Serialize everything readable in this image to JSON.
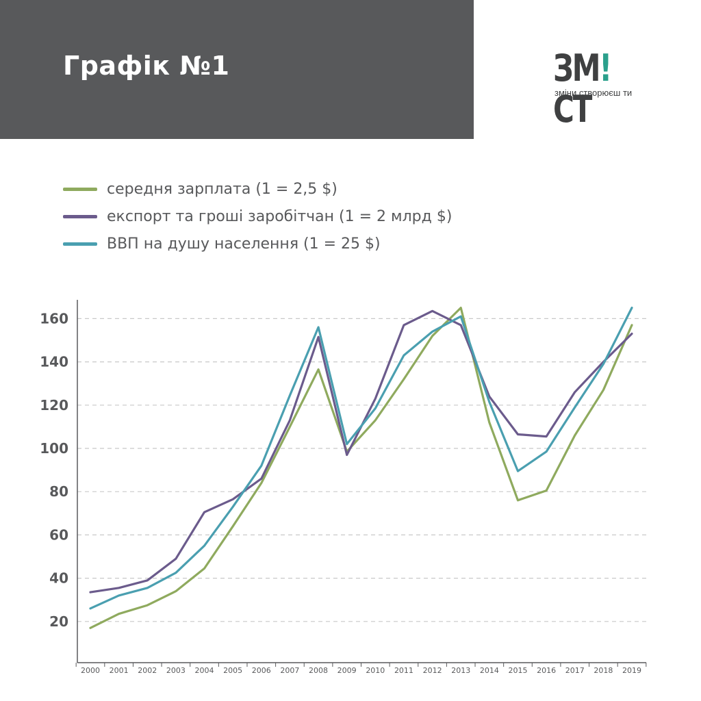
{
  "header": {
    "title": "Графік №1"
  },
  "logo": {
    "word_left": "ЗМ",
    "word_accent": "!",
    "word_right": "СТ",
    "tagline": "зміни створюєш ти"
  },
  "colors": {
    "header_bg": "#58595b",
    "salary": "#8faa5e",
    "export": "#6b5b8c",
    "gdp": "#4a9fb0",
    "grid": "#c8c8c8",
    "axis": "#58595b"
  },
  "chart_data": {
    "type": "line",
    "x": [
      "2000",
      "2001",
      "2002",
      "2003",
      "2004",
      "2005",
      "2006",
      "2007",
      "2008",
      "2009",
      "2010",
      "2011",
      "2012",
      "2013",
      "2014",
      "2015",
      "2016",
      "2017",
      "2018",
      "2019"
    ],
    "ylim": [
      0,
      168
    ],
    "yticks": [
      20,
      40,
      60,
      80,
      100,
      120,
      140,
      160
    ],
    "grid": true,
    "legend_position": "top-left",
    "series": [
      {
        "name": "середня зарплата (1 = 2,5 $)",
        "color": "#8faa5e",
        "values": [
          17,
          23.5,
          27.5,
          34,
          44.5,
          64,
          84,
          110,
          136.5,
          98.5,
          113,
          132,
          152,
          165,
          112,
          76,
          80.5,
          106,
          127,
          157
        ]
      },
      {
        "name": "експорт та гроші заробітчан (1 = 2 млрд $)",
        "color": "#6b5b8c",
        "values": [
          33.5,
          35.5,
          39,
          49,
          70.5,
          76.5,
          86,
          113,
          151.5,
          97,
          123,
          157,
          163.5,
          157,
          124,
          106.5,
          105.5,
          126,
          140,
          153
        ]
      },
      {
        "name": "ВВП на душу населення  (1 = 25 $)",
        "color": "#4a9fb0",
        "values": [
          26,
          32,
          35.5,
          42.5,
          55,
          73,
          92,
          124.5,
          156,
          102,
          118.5,
          143,
          154,
          161,
          121.5,
          89.5,
          98.5,
          119,
          139,
          165
        ]
      }
    ]
  }
}
